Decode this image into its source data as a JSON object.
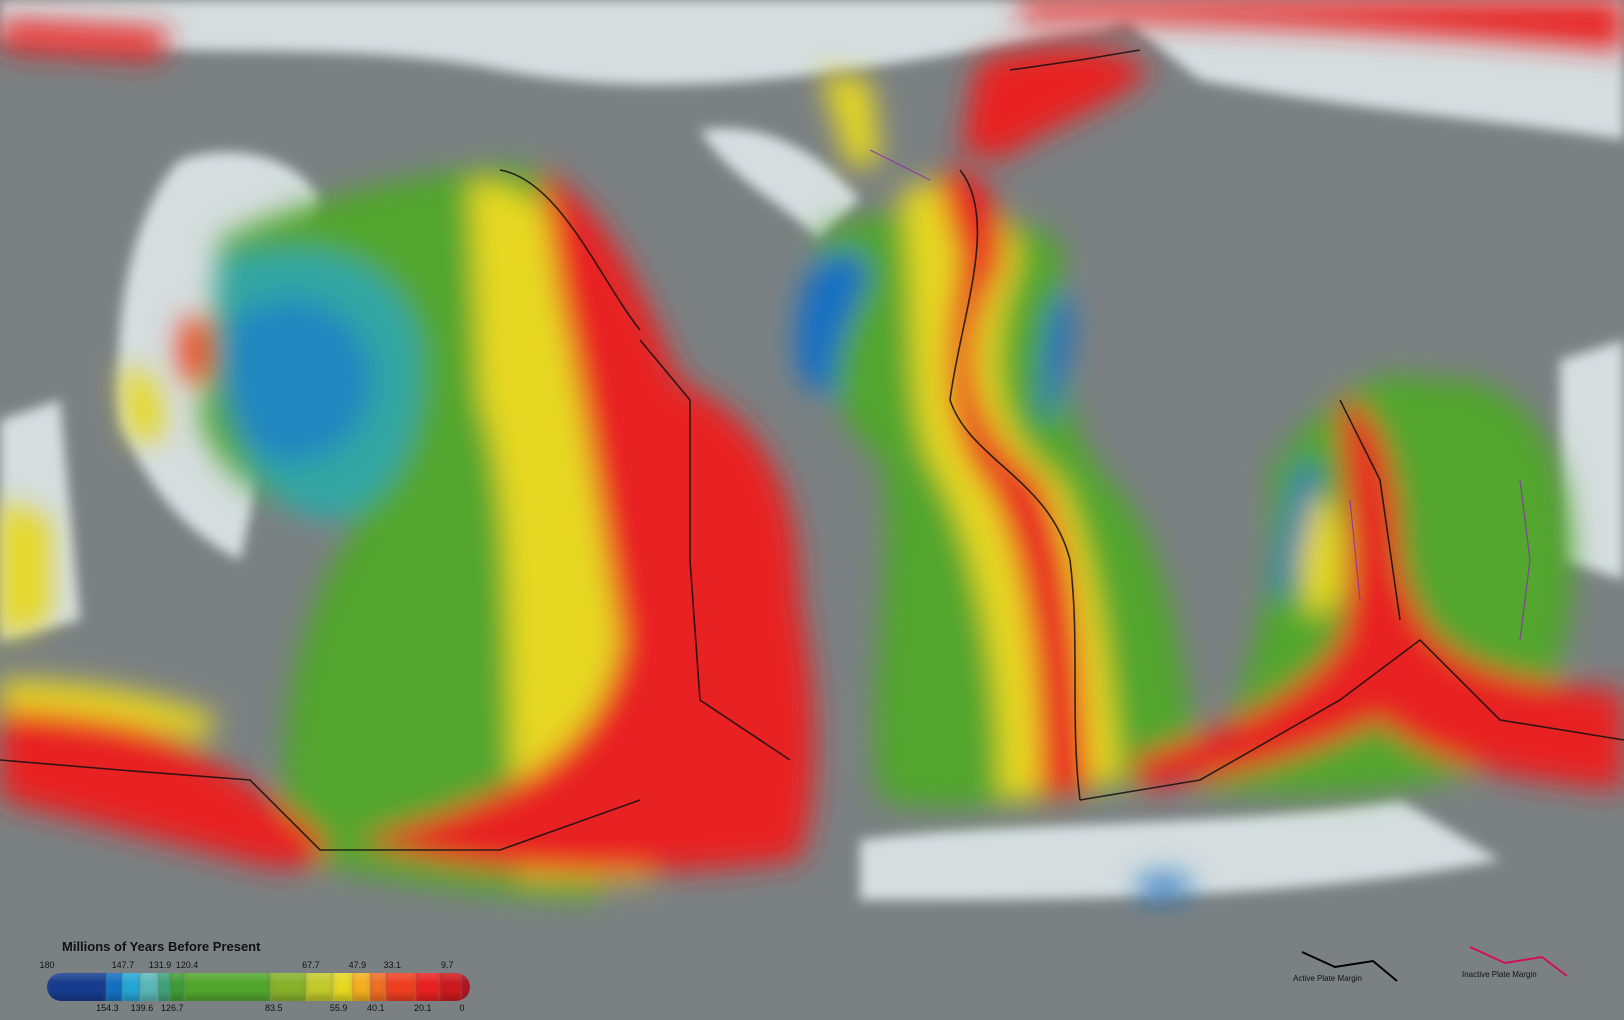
{
  "legend": {
    "title": "Millions of Years Before Present",
    "ticks_top": [
      "180",
      "147.7",
      "131.9",
      "120.4",
      "67.7",
      "47.9",
      "33.1",
      "9.7"
    ],
    "ticks_bottom": [
      "154.3",
      "139.6",
      "126.7",
      "83.5",
      "55.9",
      "40.1",
      "20.1",
      "0"
    ],
    "scale": [
      {
        "age": 180,
        "color": "#173c8e"
      },
      {
        "age": 154.3,
        "color": "#1270c2"
      },
      {
        "age": 147.7,
        "color": "#25a6d6"
      },
      {
        "age": 139.6,
        "color": "#5ab8b8"
      },
      {
        "age": 131.9,
        "color": "#3fa37a"
      },
      {
        "age": 126.7,
        "color": "#3f9c3a"
      },
      {
        "age": 120.4,
        "color": "#52a62e"
      },
      {
        "age": 83.5,
        "color": "#88b12c"
      },
      {
        "age": 67.7,
        "color": "#c2c92c"
      },
      {
        "age": 55.9,
        "color": "#e6d820"
      },
      {
        "age": 47.9,
        "color": "#f2ae1e"
      },
      {
        "age": 40.1,
        "color": "#ee6e22"
      },
      {
        "age": 33.1,
        "color": "#ee4020"
      },
      {
        "age": 20.1,
        "color": "#e82222"
      },
      {
        "age": 9.7,
        "color": "#cc1a1e"
      },
      {
        "age": 0,
        "color": "#b01020"
      }
    ]
  },
  "margins": {
    "active": {
      "label": "Active Plate Margin",
      "color": "#000000"
    },
    "inactive": {
      "label": "Inactive Plate Margin",
      "color": "#d0105a"
    }
  },
  "colors": {
    "land": "#7b8183",
    "shelf": "#dfe8ea"
  }
}
